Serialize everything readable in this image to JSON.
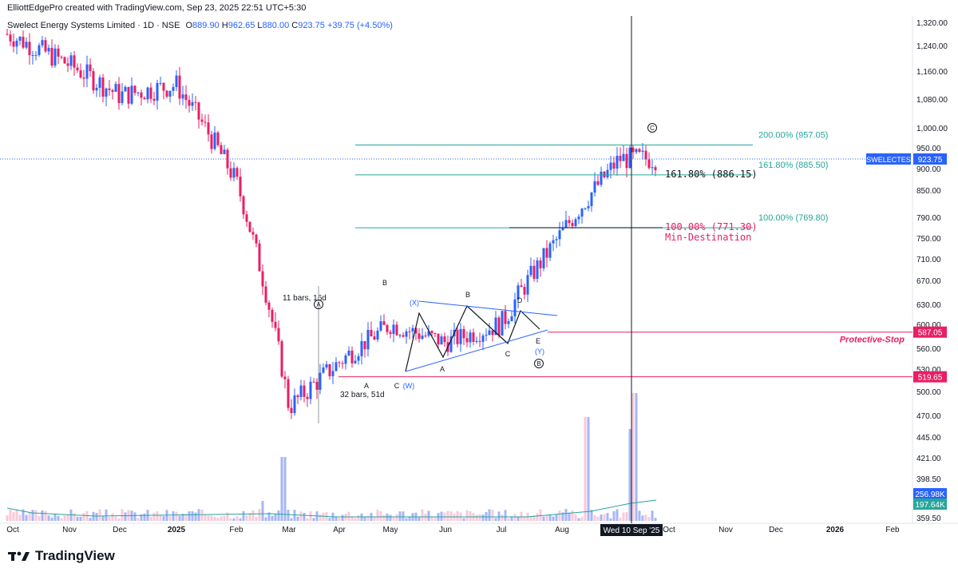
{
  "header": {
    "publisher": "ElliottEdgePro created with TradingView.com, Sep 23, 2025 22:51 UTC+5:30"
  },
  "legend": {
    "symbol": "Swelect Energy Systems Limited · 1D · NSE",
    "o_label": "O",
    "o_value": "889.90",
    "h_label": "H",
    "h_value": "962.65",
    "l_label": "L",
    "l_value": "880.00",
    "c_label": "C",
    "c_value": "923.75",
    "change": "+39.75 (+4.50%)"
  },
  "footer": {
    "brand": "TradingView"
  },
  "colors": {
    "up": "#2962ff",
    "down": "#e91e63",
    "fib": "#26a69a",
    "stop": "#e91e63",
    "vol_up": "#90a4f5",
    "vol_down": "#f8bbd0",
    "vol_ma": "#26a69a",
    "crosshair": "#131722"
  },
  "chart_data": {
    "type": "candlestick",
    "symbol": "SWELECTES",
    "y_ticks": [
      "1,320.00",
      "1,240.00",
      "1,160.00",
      "1,080.00",
      "1,000.00",
      "950.00",
      "900.00",
      "850.00",
      "790.00",
      "750.00",
      "710.00",
      "670.00",
      "630.00",
      "600.00",
      "560.00",
      "530.00",
      "500.00",
      "470.00",
      "445.00",
      "421.00",
      "398.50",
      "359.50"
    ],
    "x_ticks": [
      "Oct",
      "Nov",
      "Dec",
      "2025",
      "Feb",
      "Mar",
      "Apr",
      "May",
      "Jun",
      "Jul",
      "Aug",
      "Sep",
      "Oct",
      "Nov",
      "Dec",
      "2026",
      "Feb"
    ],
    "crosshair_date": "Wed 10 Sep '25",
    "price_tags": [
      {
        "label": "SWELECTES",
        "value": "923.75"
      },
      {
        "label": "",
        "value": "587.05"
      },
      {
        "label": "",
        "value": "519.65"
      },
      {
        "label": "",
        "value": "256.98K"
      },
      {
        "label": "",
        "value": "197.64K"
      }
    ],
    "fib_levels": [
      {
        "label": "200.00% (957.05)",
        "price": 957.05
      },
      {
        "label": "161.80% (885.50)",
        "price": 885.5
      },
      {
        "label": "100.00% (769.80)",
        "price": 769.8
      }
    ],
    "annotations": {
      "fib_161": "161.80% (886.15)",
      "fib_100": "100.00% (771.30)",
      "min_destination": "Min-Destination",
      "protective_stop": "Protective-Stop",
      "bars_11": "11 bars, 16d",
      "bars_32": "32 bars, 51d"
    },
    "wave_labels": [
      "A",
      "B",
      "C",
      "(W)",
      "(X)",
      "A",
      "B",
      "C",
      "D",
      "E",
      "(Y)",
      "A",
      "B",
      "C"
    ],
    "levels": {
      "protective_stop": 587.05,
      "lower_stop": 519.65
    },
    "price_path": [
      {
        "month": "Oct 2024",
        "close": 1280
      },
      {
        "month": "Nov",
        "close": 1180
      },
      {
        "month": "Dec",
        "close": 1090
      },
      {
        "month": "Jan 2025",
        "close": 1120
      },
      {
        "month": "Feb",
        "close": 870
      },
      {
        "month": "Mar",
        "close": 480
      },
      {
        "month": "Apr",
        "close": 540
      },
      {
        "month": "May",
        "close": 600
      },
      {
        "month": "Jun",
        "close": 570
      },
      {
        "month": "Jul",
        "close": 600
      },
      {
        "month": "Aug",
        "close": 760
      },
      {
        "month": "Sep",
        "close": 923.75
      }
    ]
  }
}
